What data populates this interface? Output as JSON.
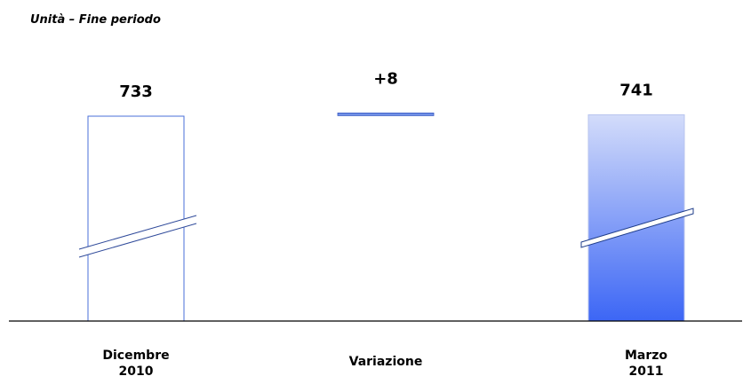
{
  "chart_data": {
    "type": "bar",
    "subtitle": "Unità – Fine  periodo",
    "categories": [
      [
        "Dicembre",
        "2010"
      ],
      [
        "Variazione"
      ],
      [
        "Marzo",
        "2011"
      ]
    ],
    "values": [
      733,
      8,
      741
    ],
    "value_labels": [
      "733",
      "+8",
      "741"
    ],
    "bar_kinds": [
      "total",
      "delta",
      "total"
    ],
    "axis_break": true,
    "grid": false,
    "legend": "none",
    "colors": {
      "outline": "#4a6fd8",
      "delta_fill": "#6f8fe6",
      "gradient_top": "#d3dcfa",
      "gradient_bottom": "#3c66f5",
      "axis": "#000000"
    }
  }
}
